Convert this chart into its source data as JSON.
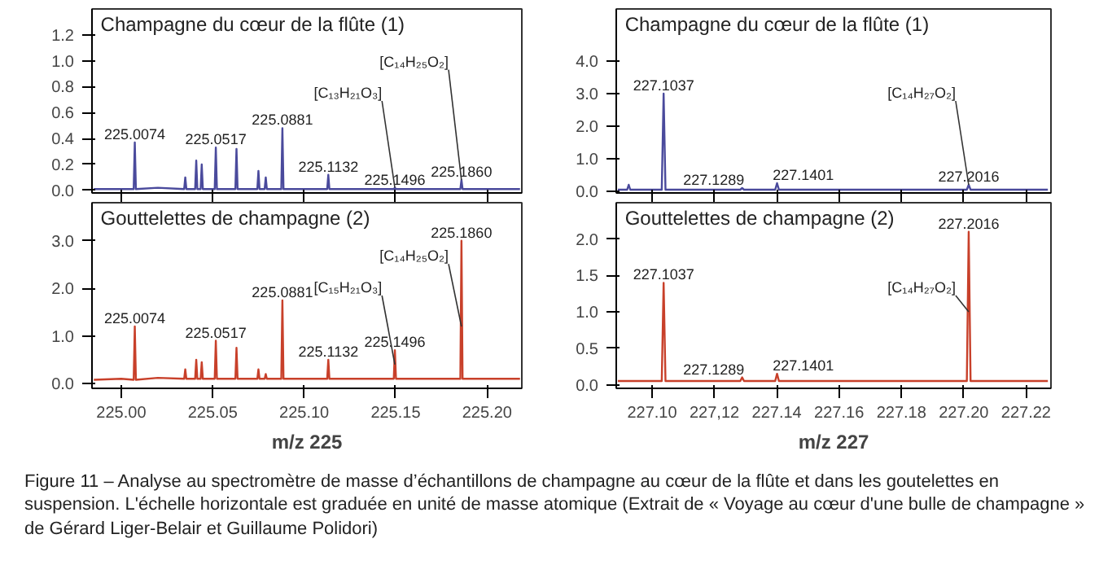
{
  "chart_data": [
    {
      "type": "line",
      "title": "Champagne du cœur de la flûte (1)",
      "color": "#4a4a9c",
      "tick_labels": "y",
      "x": [
        224.985,
        225.0,
        225.0068,
        225.0074,
        225.008,
        225.02,
        225.0344,
        225.035,
        225.0356,
        225.0404,
        225.041,
        225.0416,
        225.0434,
        225.044,
        225.0446,
        225.0511,
        225.0517,
        225.0523,
        225.0624,
        225.063,
        225.0636,
        225.0744,
        225.075,
        225.0756,
        225.0784,
        225.079,
        225.0796,
        225.0875,
        225.0881,
        225.0887,
        225.1126,
        225.1132,
        225.1138,
        225.149,
        225.1496,
        225.1502,
        225.1854,
        225.186,
        225.1866,
        225.218
      ],
      "values": [
        0.01,
        0.01,
        0.01,
        0.37,
        0.01,
        0.02,
        0.01,
        0.1,
        0.01,
        0.01,
        0.23,
        0.01,
        0.01,
        0.2,
        0.01,
        0.01,
        0.33,
        0.01,
        0.01,
        0.32,
        0.01,
        0.01,
        0.15,
        0.01,
        0.01,
        0.1,
        0.01,
        0.01,
        0.48,
        0.01,
        0.01,
        0.12,
        0.01,
        0.01,
        0.02,
        0.01,
        0.01,
        0.08,
        0.01,
        0.01
      ],
      "xlim": [
        224.984,
        225.219
      ],
      "ylim": [
        -0.02,
        1.4
      ],
      "xticks": [
        {
          "value": 225.0,
          "label": null
        },
        {
          "value": 225.05,
          "label": null
        },
        {
          "value": 225.1,
          "label": null
        },
        {
          "value": 225.15,
          "label": null
        },
        {
          "value": 225.2,
          "label": null
        }
      ],
      "yticks": [
        {
          "value": 0,
          "label": "0.0"
        },
        {
          "value": 0.2,
          "label": "0.2"
        },
        {
          "value": 0.4,
          "label": "0.4"
        },
        {
          "value": 0.6,
          "label": "0.6"
        },
        {
          "value": 0.8,
          "label": "0.8"
        },
        {
          "value": 1.0,
          "label": "1.0"
        },
        {
          "value": 1.2,
          "label": "1.2"
        }
      ],
      "annotations": [
        {
          "text": "225.0074",
          "x": 225.0074,
          "y": 0.37
        },
        {
          "text": "225.0517",
          "x": 225.0517,
          "y": 0.33
        },
        {
          "text": "225.0881",
          "x": 225.0881,
          "y": 0.48
        },
        {
          "text": "225.1132",
          "x": 225.1132,
          "y": 0.12
        },
        {
          "text": "225.1496",
          "x": 225.1496,
          "y": 0.02
        },
        {
          "text": "[C₁₃H₂₁O₃]",
          "x": 225.1496,
          "y": 0.02
        },
        {
          "text": "225.1860",
          "x": 225.186,
          "y": 0.08
        },
        {
          "text": "[C₁₄H₂₅O₂]",
          "x": 225.186,
          "y": 0.08
        }
      ]
    },
    {
      "type": "line",
      "title": "Champagne du cœur de la flûte (1)",
      "color": "#4a4a9c",
      "tick_labels": "y",
      "x": [
        227.089,
        227.092,
        227.0925,
        227.093,
        227.1031,
        227.1037,
        227.1043,
        227.1283,
        227.1289,
        227.1295,
        227.1395,
        227.1401,
        227.1407,
        227.201,
        227.2016,
        227.2022,
        227.227
      ],
      "values": [
        0.05,
        0.05,
        0.2,
        0.05,
        0.05,
        3.0,
        0.05,
        0.05,
        0.1,
        0.05,
        0.05,
        0.25,
        0.05,
        0.05,
        0.2,
        0.05,
        0.05
      ],
      "xlim": [
        227.0885,
        227.228
      ],
      "ylim": [
        -0.05,
        5.6
      ],
      "xticks": [
        {
          "value": 227.1,
          "label": null
        },
        {
          "value": 227.12,
          "label": null
        },
        {
          "value": 227.14,
          "label": null
        },
        {
          "value": 227.16,
          "label": null
        },
        {
          "value": 227.18,
          "label": null
        },
        {
          "value": 227.2,
          "label": null
        },
        {
          "value": 227.22,
          "label": null
        }
      ],
      "yticks": [
        {
          "value": 0,
          "label": "0.0"
        },
        {
          "value": 1,
          "label": "1.0"
        },
        {
          "value": 2,
          "label": "2.0"
        },
        {
          "value": 3,
          "label": "3.0"
        },
        {
          "value": 4,
          "label": "4.0"
        }
      ],
      "annotations": [
        {
          "text": "227.1037",
          "x": 227.1037,
          "y": 3.0
        },
        {
          "text": "227.1289",
          "x": 227.1289,
          "y": 0.1
        },
        {
          "text": "227.1401",
          "x": 227.1401,
          "y": 0.25
        },
        {
          "text": "227.2016",
          "x": 227.2016,
          "y": 0.2
        },
        {
          "text": "[C₁₄H₂₇O₂]",
          "x": 227.2016,
          "y": 0.2
        }
      ]
    },
    {
      "type": "line",
      "title": "Gouttelettes de champagne (2)",
      "color": "#c8402a",
      "xlabel": "m/z 225",
      "x": [
        224.985,
        225.0,
        225.0068,
        225.0074,
        225.008,
        225.02,
        225.0344,
        225.035,
        225.0356,
        225.0404,
        225.041,
        225.0416,
        225.0434,
        225.044,
        225.0446,
        225.0511,
        225.0517,
        225.0523,
        225.0624,
        225.063,
        225.0636,
        225.0744,
        225.075,
        225.0756,
        225.0784,
        225.079,
        225.0796,
        225.0875,
        225.0881,
        225.0887,
        225.1126,
        225.1132,
        225.1138,
        225.149,
        225.1496,
        225.1502,
        225.1854,
        225.186,
        225.1866,
        225.218
      ],
      "values": [
        0.08,
        0.1,
        0.08,
        1.2,
        0.08,
        0.12,
        0.1,
        0.3,
        0.1,
        0.1,
        0.5,
        0.1,
        0.1,
        0.45,
        0.1,
        0.1,
        0.9,
        0.1,
        0.1,
        0.75,
        0.1,
        0.1,
        0.3,
        0.1,
        0.1,
        0.2,
        0.1,
        0.1,
        1.75,
        0.1,
        0.1,
        0.5,
        0.1,
        0.1,
        0.7,
        0.1,
        0.1,
        3.0,
        0.1,
        0.1
      ],
      "xlim": [
        224.984,
        225.219
      ],
      "ylim": [
        -0.1,
        3.8
      ],
      "xticks": [
        {
          "value": 225.0,
          "label": "225.00"
        },
        {
          "value": 225.05,
          "label": "225.05"
        },
        {
          "value": 225.1,
          "label": "225.10"
        },
        {
          "value": 225.15,
          "label": "225.15"
        },
        {
          "value": 225.2,
          "label": "225.20"
        }
      ],
      "yticks": [
        {
          "value": 0,
          "label": "0.0"
        },
        {
          "value": 1,
          "label": "1.0"
        },
        {
          "value": 2,
          "label": "2.0"
        },
        {
          "value": 3,
          "label": "3.0"
        }
      ],
      "annotations": [
        {
          "text": "225.0074",
          "x": 225.0074,
          "y": 1.2
        },
        {
          "text": "225.0517",
          "x": 225.0517,
          "y": 0.9
        },
        {
          "text": "225.0881",
          "x": 225.0881,
          "y": 1.75
        },
        {
          "text": "225.1132",
          "x": 225.1132,
          "y": 0.5
        },
        {
          "text": "225.1496",
          "x": 225.1496,
          "y": 0.7
        },
        {
          "text": "[C₁₅H₂₁O₃]",
          "x": 225.1496,
          "y": 0.4
        },
        {
          "text": "225.1860",
          "x": 225.186,
          "y": 3.0
        },
        {
          "text": "[C₁₄H₂₅O₂]",
          "x": 225.186,
          "y": 1.2
        }
      ]
    },
    {
      "type": "line",
      "title": "Gouttelettes de champagne (2)",
      "color": "#c8402a",
      "xlabel": "m/z 227",
      "x": [
        227.089,
        227.092,
        227.0925,
        227.093,
        227.1031,
        227.1037,
        227.1043,
        227.1283,
        227.1289,
        227.1295,
        227.1395,
        227.1401,
        227.1407,
        227.201,
        227.2016,
        227.2022,
        227.227
      ],
      "values": [
        0.05,
        0.05,
        0.05,
        0.05,
        0.05,
        1.4,
        0.05,
        0.05,
        0.1,
        0.05,
        0.05,
        0.15,
        0.05,
        0.05,
        2.1,
        0.05,
        0.05
      ],
      "xlim": [
        227.0885,
        227.228
      ],
      "ylim": [
        -0.05,
        2.5
      ],
      "xticks": [
        {
          "value": 227.1,
          "label": "227.10"
        },
        {
          "value": 227.12,
          "label": "227,12"
        },
        {
          "value": 227.14,
          "label": "227.14"
        },
        {
          "value": 227.16,
          "label": "227.16"
        },
        {
          "value": 227.18,
          "label": "227.18"
        },
        {
          "value": 227.2,
          "label": "227.20"
        },
        {
          "value": 227.22,
          "label": "227.22"
        }
      ],
      "yticks": [
        {
          "value": 0,
          "label": "0.0"
        },
        {
          "value": 0.5,
          "label": "0.5"
        },
        {
          "value": 1.0,
          "label": "1.0"
        },
        {
          "value": 1.5,
          "label": "1.5"
        },
        {
          "value": 2.0,
          "label": "2.0"
        }
      ],
      "annotations": [
        {
          "text": "227.1037",
          "x": 227.1037,
          "y": 1.4
        },
        {
          "text": "227.1289",
          "x": 227.1289,
          "y": 0.1
        },
        {
          "text": "227.1401",
          "x": 227.1401,
          "y": 0.15
        },
        {
          "text": "227.2016",
          "x": 227.2016,
          "y": 2.1
        },
        {
          "text": "[C₁₄H₂₇O₂]",
          "x": 227.2016,
          "y": 1.0
        },
        "Figure 11 – Analyse au spectromètre de masse d’échantillons de champagne au cœur de la flûte et dans les goutelettes en suspension. L'échelle horizontale est graduée en unité de masse atomique (Extrait de « Voyage au cœur d'une bulle de champagne » de Gérard Liger-Belair et Guillaume Polidori)"
      ]
    }
  ]
}
